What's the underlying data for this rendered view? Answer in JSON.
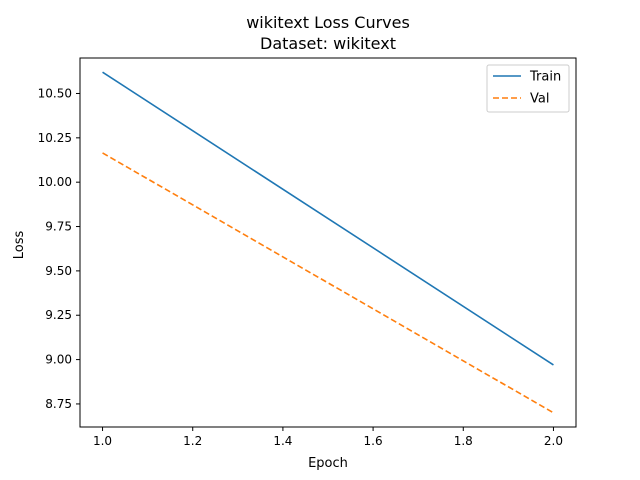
{
  "chart_data": {
    "type": "line",
    "title": "wikitext Loss Curves",
    "subtitle": "Dataset: wikitext",
    "xlabel": "Epoch",
    "ylabel": "Loss",
    "xlim": [
      0.95,
      2.05
    ],
    "ylim": [
      8.62,
      10.7
    ],
    "x_ticks": [
      1.0,
      1.2,
      1.4,
      1.6,
      1.8,
      2.0
    ],
    "x_tick_labels": [
      "1.0",
      "1.2",
      "1.4",
      "1.6",
      "1.8",
      "2.0"
    ],
    "y_ticks": [
      8.75,
      9.0,
      9.25,
      9.5,
      9.75,
      10.0,
      10.25,
      10.5
    ],
    "y_tick_labels": [
      "8.75",
      "9.00",
      "9.25",
      "9.50",
      "9.75",
      "10.00",
      "10.25",
      "10.50"
    ],
    "grid": false,
    "legend_position": "top-right",
    "series": [
      {
        "name": "Train",
        "x": [
          1.0,
          2.0
        ],
        "y": [
          10.62,
          8.97
        ],
        "color": "#1f77b4",
        "style": "solid"
      },
      {
        "name": "Val",
        "x": [
          1.0,
          2.0
        ],
        "y": [
          10.165,
          8.7
        ],
        "color": "#ff7f0e",
        "style": "dashed"
      }
    ]
  }
}
